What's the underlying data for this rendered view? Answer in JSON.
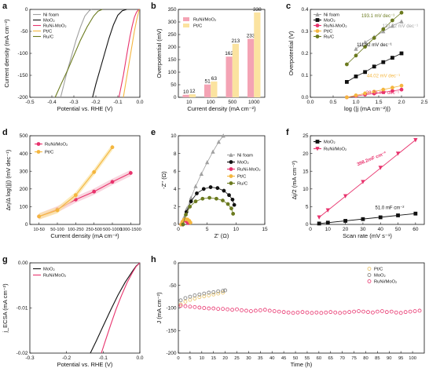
{
  "chart_data": [
    {
      "panel": "a",
      "type": "line",
      "xlabel": "Potential vs. RHE (V)",
      "ylabel": "Current density (mA cm⁻²)",
      "xlim": [
        -0.5,
        0.0
      ],
      "ylim": [
        -200,
        0
      ],
      "xticks": [
        "-0.5",
        "-0.4",
        "-0.3",
        "-0.2",
        "-0.1",
        "0.0"
      ],
      "yticks": [
        "-200",
        "-150",
        "-100",
        "-50",
        "0"
      ],
      "legend_position": "top-left",
      "series": [
        {
          "name": "Ni foam",
          "color": "#a0a0a0",
          "x": [
            -0.36,
            -0.345,
            -0.33,
            -0.31,
            -0.29,
            -0.27,
            -0.25,
            -0.23,
            -0.22
          ],
          "y": [
            -200,
            -170,
            -140,
            -105,
            -70,
            -40,
            -15,
            -3,
            0
          ]
        },
        {
          "name": "MoO₂",
          "color": "#111111",
          "x": [
            -0.215,
            -0.2,
            -0.18,
            -0.16,
            -0.14,
            -0.12,
            -0.1,
            -0.08,
            -0.06
          ],
          "y": [
            -200,
            -170,
            -135,
            -100,
            -65,
            -35,
            -13,
            -3,
            0
          ]
        },
        {
          "name": "RuNi-MoO₂",
          "color": "#e8336d",
          "x": [
            -0.095,
            -0.085,
            -0.075,
            -0.065,
            -0.055,
            -0.045,
            -0.035,
            -0.025,
            -0.015,
            -0.005
          ],
          "y": [
            -200,
            -175,
            -150,
            -120,
            -90,
            -62,
            -38,
            -18,
            -6,
            0
          ]
        },
        {
          "name": "Pt/C",
          "color": "#f4b63f",
          "x": [
            -0.075,
            -0.065,
            -0.055,
            -0.045,
            -0.035,
            -0.025,
            -0.015,
            -0.008,
            -0.002
          ],
          "y": [
            -200,
            -170,
            -140,
            -110,
            -80,
            -50,
            -25,
            -10,
            0
          ]
        },
        {
          "name": "Ru/C",
          "color": "#6b7a1e",
          "x": [
            -0.385,
            -0.36,
            -0.33,
            -0.3,
            -0.27,
            -0.24,
            -0.21,
            -0.19,
            -0.17
          ],
          "y": [
            -200,
            -172,
            -140,
            -105,
            -70,
            -40,
            -15,
            -4,
            0
          ]
        }
      ]
    },
    {
      "panel": "b",
      "type": "bar",
      "xlabel": "Current density (mA cm⁻²)",
      "ylabel": "Overpotential (mV)",
      "ylim": [
        0,
        350
      ],
      "yticks": [
        "0",
        "50",
        "100",
        "150",
        "200",
        "250",
        "300",
        "350"
      ],
      "categories": [
        "10",
        "100",
        "500",
        "1000"
      ],
      "legend_position": "top-left",
      "series": [
        {
          "name": "RuNi/MoO₂",
          "color": "#f4a3b4",
          "values": [
            10,
            51,
            162,
            233
          ],
          "labels": [
            "10",
            "51",
            "162",
            "233"
          ]
        },
        {
          "name": "Pt/C",
          "color": "#fbe3a0",
          "values": [
            12,
            63,
            213,
            338
          ],
          "labels": [
            "12",
            "63",
            "213",
            "338"
          ]
        }
      ]
    },
    {
      "panel": "c",
      "type": "line",
      "xlabel": "log (|j (mA cm⁻²)|)",
      "ylabel": "Overpotential (V)",
      "xlim": [
        0.0,
        2.5
      ],
      "ylim": [
        0.0,
        0.4
      ],
      "xticks": [
        "0.0",
        "0.5",
        "1.0",
        "1.5",
        "2.0",
        "2.5"
      ],
      "yticks": [
        "0.0",
        "0.1",
        "0.2",
        "0.3",
        "0.4"
      ],
      "legend_position": "top-left",
      "series": [
        {
          "name": "Ni foam",
          "color": "#a0a0a0",
          "x": [
            1.0,
            1.2,
            1.4,
            1.6,
            1.8,
            2.0
          ],
          "y": [
            0.22,
            0.25,
            0.275,
            0.3,
            0.325,
            0.345
          ]
        },
        {
          "name": "MoO₂",
          "color": "#111111",
          "x": [
            0.8,
            1.0,
            1.2,
            1.4,
            1.6,
            1.8,
            2.0
          ],
          "y": [
            0.07,
            0.095,
            0.115,
            0.14,
            0.16,
            0.18,
            0.2
          ]
        },
        {
          "name": "RuNi-MoO₂",
          "color": "#e8336d",
          "x": [
            0.8,
            1.0,
            1.2,
            1.4,
            1.6,
            1.8,
            2.0
          ],
          "y": [
            0.0,
            0.006,
            0.012,
            0.017,
            0.023,
            0.029,
            0.035
          ]
        },
        {
          "name": "Pt/C",
          "color": "#f4b63f",
          "x": [
            0.8,
            1.0,
            1.2,
            1.4,
            1.6,
            1.8,
            2.0
          ],
          "y": [
            0.0,
            0.009,
            0.018,
            0.026,
            0.035,
            0.044,
            0.053
          ]
        },
        {
          "name": "Ru/C",
          "color": "#6b7a1e",
          "x": [
            0.8,
            1.0,
            1.2,
            1.4,
            1.6,
            1.8,
            2.0
          ],
          "y": [
            0.15,
            0.19,
            0.23,
            0.27,
            0.31,
            0.35,
            0.385
          ]
        }
      ],
      "annotations": [
        {
          "text": "193.1 mV dec⁻¹",
          "color": "#6b7a1e"
        },
        {
          "text": "133.72 mV dec⁻¹",
          "color": "#a0a0a0"
        },
        {
          "text": "111.82 mV dec⁻¹",
          "color": "#111111"
        },
        {
          "text": "44.02 mV dec⁻¹",
          "color": "#f4b63f"
        },
        {
          "text": "28.76 mV dec⁻¹",
          "color": "#e8336d"
        }
      ]
    },
    {
      "panel": "d",
      "type": "line",
      "xlabel": "Current density (mA cm⁻²)",
      "ylabel": "Δη/Δ log(|j|) (mV dec⁻¹)",
      "ylim": [
        0,
        500
      ],
      "yticks": [
        "0",
        "100",
        "200",
        "300",
        "400",
        "500"
      ],
      "categories": [
        "10-50",
        "50-100",
        "100-250",
        "250-500",
        "500-1000",
        "1000-1500"
      ],
      "legend_position": "top-left",
      "series": [
        {
          "name": "RuNi/MoO₂",
          "color": "#e8336d",
          "values": [
            45,
            85,
            140,
            185,
            240,
            290
          ]
        },
        {
          "name": "Pt/C",
          "color": "#f4b63f",
          "values": [
            45,
            80,
            165,
            295,
            435,
            null
          ]
        }
      ]
    },
    {
      "panel": "e",
      "type": "scatter",
      "xlabel": "Z' (Ω)",
      "ylabel": "-Z'' (Ω)",
      "xlim": [
        0,
        15
      ],
      "ylim": [
        0,
        10
      ],
      "xticks": [
        "0",
        "5",
        "10",
        "15"
      ],
      "yticks": [
        "0",
        "2",
        "4",
        "6",
        "8",
        "10"
      ],
      "legend_position": "right",
      "series": [
        {
          "name": "Ni foam",
          "color": "#a0a0a0",
          "x": [
            0.6,
            1.0,
            1.5,
            2.2,
            3.0,
            4.0,
            5.0,
            6.0,
            7.0,
            7.8
          ],
          "y": [
            0,
            0.8,
            1.8,
            3.0,
            4.3,
            5.7,
            7.0,
            8.2,
            9.3,
            10.0
          ]
        },
        {
          "name": "MoO₂",
          "color": "#111111",
          "x": [
            0.8,
            1.4,
            2.2,
            3.2,
            4.4,
            5.6,
            6.8,
            7.9,
            8.8,
            9.4,
            9.7
          ],
          "y": [
            0,
            1.4,
            2.6,
            3.5,
            4.0,
            4.2,
            4.1,
            3.8,
            3.3,
            2.8,
            2.2
          ]
        },
        {
          "name": "RuNi-MoO₂",
          "color": "#e8336d",
          "x": [
            0.5,
            0.7,
            0.9,
            1.1,
            1.3,
            1.5,
            1.7
          ],
          "y": [
            0,
            0.2,
            0.4,
            0.45,
            0.4,
            0.3,
            0.15
          ]
        },
        {
          "name": "Pt/C",
          "color": "#f4b63f",
          "x": [
            0.5,
            0.7,
            1.0,
            1.3,
            1.6,
            1.9,
            2.1
          ],
          "y": [
            0,
            0.3,
            0.55,
            0.6,
            0.55,
            0.4,
            0.2
          ]
        },
        {
          "name": "Ru/C",
          "color": "#6b7a1e",
          "x": [
            0.8,
            1.3,
            2.0,
            3.0,
            4.2,
            5.4,
            6.6,
            7.7,
            8.6,
            9.2,
            9.5
          ],
          "y": [
            0,
            1.1,
            2.0,
            2.6,
            2.9,
            3.0,
            2.9,
            2.7,
            2.3,
            1.8,
            1.2
          ]
        }
      ]
    },
    {
      "panel": "f",
      "type": "scatter",
      "xlabel": "Scan rate (mV s⁻¹)",
      "ylabel": "Δj/2 (mA cm⁻²)",
      "xlim": [
        0,
        65
      ],
      "ylim": [
        0,
        25
      ],
      "xticks": [
        "0",
        "10",
        "20",
        "30",
        "40",
        "50",
        "60"
      ],
      "yticks": [
        "0",
        "5",
        "10",
        "15",
        "20",
        "25"
      ],
      "legend_position": "top-left",
      "series": [
        {
          "name": "MoO₂",
          "color": "#111111",
          "x": [
            5,
            10,
            20,
            30,
            40,
            50,
            60
          ],
          "y": [
            0.25,
            0.5,
            1.0,
            1.5,
            2.0,
            2.55,
            3.05
          ]
        },
        {
          "name": "RuNi/MoO₂",
          "color": "#e8336d",
          "x": [
            5,
            10,
            20,
            30,
            40,
            50,
            60
          ],
          "y": [
            2.0,
            4.0,
            8.0,
            12.0,
            16.0,
            20.0,
            23.8
          ]
        }
      ],
      "annotations": [
        {
          "text": "398.2mF cm⁻²",
          "color": "#e8336d"
        },
        {
          "text": "51.0 mF cm⁻²",
          "color": "#111111"
        }
      ]
    },
    {
      "panel": "g",
      "type": "line",
      "xlabel": "Potential vs. RHE (V)",
      "ylabel": "j_ECSA (mA cm⁻²)",
      "xlim": [
        -0.3,
        0.0
      ],
      "ylim": [
        -0.02,
        0.0
      ],
      "xticks": [
        "-0.3",
        "-0.2",
        "-0.1",
        "0.0"
      ],
      "yticks": [
        "-0.02",
        "-0.01",
        "0.00"
      ],
      "legend_position": "top-left",
      "series": [
        {
          "name": "MoO₂",
          "color": "#111111",
          "x": [
            -0.135,
            -0.12,
            -0.1,
            -0.08,
            -0.06,
            -0.04,
            -0.02,
            -0.01,
            0.0
          ],
          "y": [
            -0.02,
            -0.0175,
            -0.014,
            -0.0105,
            -0.0072,
            -0.0043,
            -0.0018,
            -0.0007,
            0.0
          ]
        },
        {
          "name": "RuNi/MoO₂",
          "color": "#e8336d",
          "x": [
            -0.105,
            -0.095,
            -0.08,
            -0.065,
            -0.05,
            -0.035,
            -0.02,
            -0.01,
            0.0
          ],
          "y": [
            -0.02,
            -0.0175,
            -0.0138,
            -0.0103,
            -0.0072,
            -0.0044,
            -0.0021,
            -0.0008,
            0.0
          ]
        }
      ]
    },
    {
      "panel": "h",
      "type": "scatter",
      "xlabel": "Time (h)",
      "ylabel": "J (mA cm⁻²)",
      "xlim": [
        0,
        105
      ],
      "ylim": [
        -200,
        0
      ],
      "xticks": [
        "0",
        "5",
        "10",
        "15",
        "20",
        "25",
        "30",
        "35",
        "40",
        "45",
        "50",
        "55",
        "60",
        "65",
        "70",
        "75",
        "80",
        "85",
        "90",
        "95",
        "100"
      ],
      "yticks": [
        "-200",
        "-150",
        "-100",
        "-50",
        "0"
      ],
      "legend_position": "top-right",
      "series": [
        {
          "name": "Pt/C",
          "color": "#e8c060",
          "x": [
            1,
            3,
            5,
            7,
            9,
            11,
            13,
            15,
            17,
            19
          ],
          "y": [
            -92,
            -86,
            -82,
            -79,
            -76,
            -74,
            -72,
            -70,
            -68,
            -66
          ]
        },
        {
          "name": "MoO₂",
          "color": "#777777",
          "x": [
            1,
            3,
            5,
            7,
            9,
            11,
            13,
            15,
            17,
            19,
            20
          ],
          "y": [
            -83,
            -78,
            -75,
            -72,
            -70,
            -68,
            -66,
            -65,
            -63,
            -62,
            -61
          ]
        },
        {
          "name": "RuNi/MoO₂",
          "color": "#e8336d",
          "x": [
            1,
            3,
            5,
            7,
            9,
            11,
            13,
            15,
            17,
            19,
            21,
            23,
            25,
            27,
            29,
            31,
            33,
            35,
            37,
            39,
            41,
            43,
            45,
            47,
            49,
            51,
            53,
            55,
            57,
            59,
            61,
            63,
            65,
            67,
            69,
            71,
            73,
            75,
            77,
            79,
            81,
            83,
            85,
            87,
            89,
            91,
            93,
            95,
            97,
            99,
            101,
            103
          ],
          "y": [
            -95,
            -96,
            -97,
            -98,
            -99,
            -100,
            -101,
            -101,
            -102,
            -102,
            -103,
            -104,
            -103,
            -105,
            -106,
            -107,
            -106,
            -105,
            -104,
            -106,
            -107,
            -108,
            -109,
            -110,
            -111,
            -110,
            -109,
            -110,
            -111,
            -110,
            -111,
            -110,
            -109,
            -110,
            -111,
            -110,
            -109,
            -108,
            -107,
            -108,
            -109,
            -110,
            -108,
            -107,
            -109,
            -108,
            -110,
            -111,
            -109,
            -108,
            -107,
            -106
          ]
        }
      ]
    }
  ]
}
